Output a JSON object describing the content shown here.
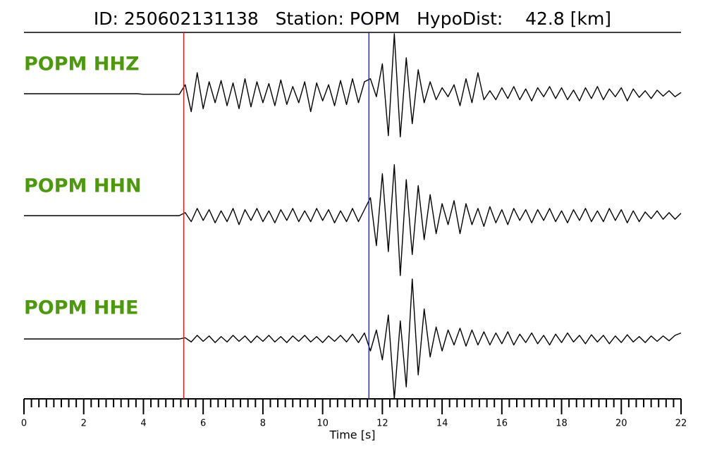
{
  "chart_data": {
    "type": "line",
    "title": "ID: 250602131138   Station: POPM   HypoDist:    42.8 [km]",
    "xlabel": "Time [s]",
    "xlim": [
      0,
      22
    ],
    "xticks": [
      0,
      2,
      4,
      6,
      8,
      10,
      12,
      14,
      16,
      18,
      20,
      22
    ],
    "xminorticks": [
      0.25,
      0.5,
      0.75,
      1,
      1.25,
      1.5,
      1.75,
      2.25,
      2.5,
      2.75,
      3,
      3.25,
      3.5,
      3.75,
      4.25,
      4.5,
      4.75,
      5,
      5.25,
      5.5,
      5.75,
      6.25,
      6.5,
      6.75,
      7,
      7.25,
      7.5,
      7.75,
      8.25,
      8.5,
      8.75,
      9,
      9.25,
      9.5,
      9.75,
      10.25,
      10.5,
      10.75,
      11,
      11.25,
      11.5,
      11.75,
      12.25,
      12.5,
      12.75,
      13,
      13.25,
      13.5,
      13.75,
      14.25,
      14.5,
      14.75,
      15,
      15.25,
      15.5,
      15.75,
      16.25,
      16.5,
      16.75,
      17,
      17.25,
      17.5,
      17.75,
      18.25,
      18.5,
      18.75,
      19,
      19.25,
      19.5,
      19.75,
      20.25,
      20.5,
      20.75,
      21,
      21.25,
      21.5,
      21.75
    ],
    "label_color": "#4a9a0a",
    "markers": [
      {
        "value": 5.35,
        "color": "#e02020"
      },
      {
        "value": 11.55,
        "color": "#1f2fd0"
      }
    ],
    "x": [
      0,
      0.2,
      0.4,
      0.6,
      0.8,
      1,
      1.2,
      1.4,
      1.6,
      1.8,
      2,
      2.2,
      2.4,
      2.6,
      2.8,
      3,
      3.2,
      3.4,
      3.6,
      3.8,
      4,
      4.2,
      4.4,
      4.6,
      4.8,
      5,
      5.2,
      5.4,
      5.6,
      5.8,
      6,
      6.2,
      6.4,
      6.6,
      6.8,
      7,
      7.2,
      7.4,
      7.6,
      7.8,
      8,
      8.2,
      8.4,
      8.6,
      8.8,
      9,
      9.2,
      9.4,
      9.6,
      9.8,
      10,
      10.2,
      10.4,
      10.6,
      10.8,
      11,
      11.2,
      11.4,
      11.6,
      11.8,
      12,
      12.2,
      12.4,
      12.6,
      12.8,
      13,
      13.2,
      13.4,
      13.6,
      13.8,
      14,
      14.2,
      14.4,
      14.6,
      14.8,
      15,
      15.2,
      15.4,
      15.6,
      15.8,
      16,
      16.2,
      16.4,
      16.6,
      16.8,
      17,
      17.2,
      17.4,
      17.6,
      17.8,
      18,
      18.2,
      18.4,
      18.6,
      18.8,
      19,
      19.2,
      19.4,
      19.6,
      19.8,
      20,
      20.2,
      20.4,
      20.6,
      20.8,
      21,
      21.2,
      21.4,
      21.6,
      21.8,
      22
    ],
    "series": [
      {
        "name": "POPM HHZ",
        "color": "#000000",
        "values": [
          0,
          0,
          0,
          0,
          0,
          0,
          0,
          0,
          0,
          0,
          0,
          0,
          0,
          0,
          0,
          0,
          0,
          0,
          0,
          0,
          -0.01,
          -0.01,
          -0.01,
          -0.01,
          -0.01,
          -0.01,
          -0.01,
          0.15,
          -0.3,
          0.35,
          -0.25,
          0.2,
          -0.15,
          0.22,
          -0.2,
          0.18,
          -0.25,
          0.25,
          -0.22,
          0.2,
          -0.15,
          0.17,
          -0.2,
          0.23,
          -0.18,
          0.12,
          -0.15,
          0.2,
          -0.3,
          0.18,
          -0.12,
          0.15,
          -0.2,
          0.22,
          -0.18,
          0.25,
          -0.15,
          0.2,
          0.25,
          -0.05,
          0.5,
          -0.7,
          1.0,
          -0.72,
          0.6,
          -0.5,
          0.4,
          -0.15,
          0.2,
          -0.1,
          0.1,
          -0.05,
          0.15,
          -0.2,
          0.25,
          -0.15,
          0.35,
          -0.1,
          0.05,
          -0.1,
          0.1,
          -0.08,
          0.12,
          -0.1,
          0.08,
          -0.12,
          0.1,
          -0.05,
          0.12,
          -0.08,
          0.1,
          -0.1,
          0.06,
          -0.12,
          0.1,
          -0.08,
          0.12,
          -0.1,
          0.08,
          -0.05,
          0.1,
          -0.12,
          0.08,
          -0.06,
          0.05,
          -0.08,
          0.06,
          -0.04,
          0.05,
          -0.05,
          0.02
        ]
      },
      {
        "name": "POPM HHN",
        "color": "#000000",
        "values": [
          0,
          0,
          0,
          0,
          0,
          0,
          0,
          0,
          0,
          0,
          0,
          0,
          0,
          0,
          0,
          0,
          0,
          0,
          0,
          0,
          0,
          0,
          0,
          0,
          0,
          0,
          0,
          0.05,
          -0.1,
          0.12,
          -0.08,
          0.1,
          -0.12,
          0.08,
          -0.1,
          0.12,
          -0.15,
          0.1,
          -0.08,
          0.12,
          -0.1,
          0.08,
          -0.12,
          0.1,
          -0.08,
          0.12,
          -0.1,
          0.08,
          -0.1,
          0.12,
          -0.08,
          0.1,
          -0.12,
          0.08,
          -0.1,
          0.12,
          -0.1,
          0.1,
          0.3,
          -0.5,
          0.7,
          -0.6,
          0.85,
          -1.0,
          0.6,
          -0.65,
          0.5,
          -0.4,
          0.35,
          -0.3,
          0.2,
          -0.15,
          0.25,
          -0.3,
          0.2,
          -0.15,
          0.12,
          -0.18,
          0.15,
          -0.12,
          0.1,
          -0.15,
          0.12,
          -0.08,
          0.1,
          -0.12,
          0.1,
          -0.08,
          0.12,
          -0.1,
          0.08,
          -0.12,
          0.1,
          -0.08,
          0.12,
          -0.1,
          0.08,
          -0.1,
          0.12,
          -0.08,
          0.1,
          -0.12,
          0.08,
          -0.1,
          0.06,
          -0.05,
          0.08,
          -0.06,
          0.05,
          -0.06,
          0.04
        ]
      },
      {
        "name": "POPM HHE",
        "color": "#000000",
        "values": [
          0,
          0,
          0,
          0,
          0,
          0,
          0,
          0,
          0,
          0,
          0,
          0,
          0,
          0,
          0,
          0,
          0,
          0,
          0,
          0,
          0,
          0,
          0,
          0,
          0,
          0,
          0,
          0.02,
          -0.05,
          0.06,
          -0.04,
          0.05,
          -0.06,
          0.04,
          -0.05,
          0.06,
          -0.04,
          0.05,
          -0.06,
          0.05,
          -0.04,
          0.06,
          -0.05,
          0.04,
          -0.06,
          0.05,
          -0.04,
          0.06,
          -0.05,
          0.04,
          -0.06,
          0.05,
          -0.04,
          0.06,
          -0.05,
          0.08,
          -0.06,
          0.1,
          -0.2,
          0.15,
          -0.35,
          0.4,
          -1.0,
          0.3,
          -0.8,
          1.0,
          -0.6,
          0.5,
          -0.3,
          0.2,
          -0.2,
          0.15,
          -0.1,
          0.18,
          -0.12,
          0.15,
          -0.1,
          0.12,
          -0.1,
          0.1,
          -0.08,
          0.12,
          -0.1,
          0.08,
          -0.06,
          0.1,
          -0.08,
          0.06,
          -0.1,
          0.08,
          -0.06,
          0.1,
          -0.05,
          0.06,
          -0.08,
          0.07,
          -0.05,
          0.06,
          -0.08,
          0.05,
          -0.06,
          0.07,
          -0.05,
          0.04,
          -0.06,
          0.05,
          -0.04,
          0.05,
          -0.03,
          0.06,
          0.1
        ]
      }
    ]
  }
}
